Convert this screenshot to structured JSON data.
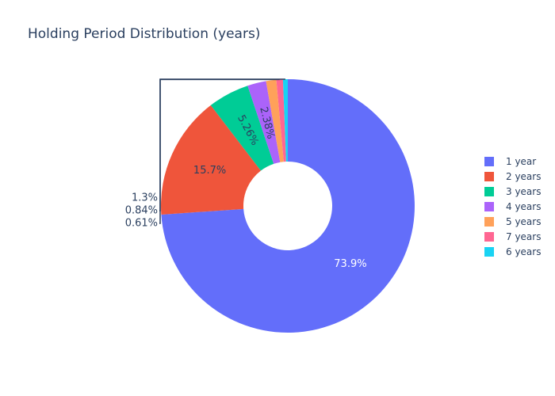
{
  "chart_data": {
    "type": "pie",
    "title": "Holding Period Distribution (years)",
    "hole": 0.35,
    "slices": [
      {
        "label": "1 year",
        "value": 73.9,
        "percent_text": "73.9%",
        "color": "#636efa"
      },
      {
        "label": "2 years",
        "value": 15.7,
        "percent_text": "15.7%",
        "color": "#EF553B"
      },
      {
        "label": "3 years",
        "value": 5.26,
        "percent_text": "5.26%",
        "color": "#00cc96"
      },
      {
        "label": "4 years",
        "value": 2.38,
        "percent_text": "2.38%",
        "color": "#ab63fa"
      },
      {
        "label": "5 years",
        "value": 1.3,
        "percent_text": "1.3%",
        "color": "#FFA15A"
      },
      {
        "label": "7 years",
        "value": 0.84,
        "percent_text": "0.84%",
        "color": "#FF6692"
      },
      {
        "label": "6 years",
        "value": 0.61,
        "percent_text": "0.61%",
        "color": "#19d3f3"
      }
    ],
    "legend": {
      "placement": "right",
      "entries": [
        "1 year",
        "2 years",
        "3 years",
        "4 years",
        "5 years",
        "7 years",
        "6 years"
      ]
    }
  }
}
